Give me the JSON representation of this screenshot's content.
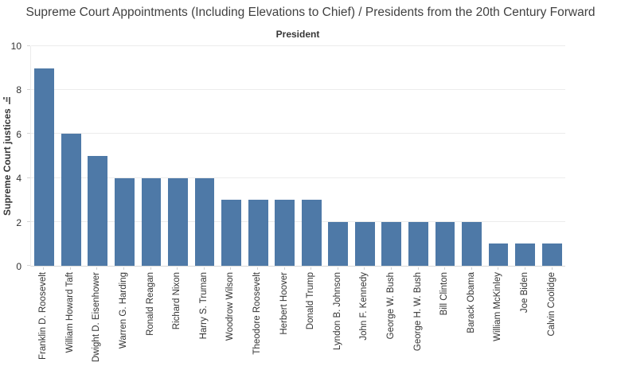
{
  "title": "Supreme Court Appointments (Including Elevations to Chief) / Presidents from the 20th Century Forward",
  "chart_data": {
    "type": "bar",
    "title": "Supreme Court Appointments (Including Elevations to Chief) / Presidents from the 20th Century Forward",
    "x_axis_title": "President",
    "y_axis_label": "Supreme Court justices",
    "categories": [
      "Franklin D. Roosevelt",
      "William Howard Taft",
      "Dwight D. Eisenhower",
      "Warren G. Harding",
      "Ronald Reagan",
      "Richard Nixon",
      "Harry S. Truman",
      "Woodrow Wilson",
      "Theodore Roosevelt",
      "Herbert Hoover",
      "Donald Trump",
      "Lyndon B. Johnson",
      "John F. Kennedy",
      "George W. Bush",
      "George H. W. Bush",
      "Bill Clinton",
      "Barack Obama",
      "William McKinley",
      "Joe Biden",
      "Calvin Coolidge"
    ],
    "values": [
      9,
      6,
      5,
      4,
      4,
      4,
      4,
      3,
      3,
      3,
      3,
      2,
      2,
      2,
      2,
      2,
      2,
      1,
      1,
      1
    ],
    "y_ticks": [
      0,
      2,
      4,
      6,
      8,
      10
    ],
    "ylim": [
      0,
      10
    ],
    "bar_color": "#4e79a7",
    "grid": "horizontal",
    "legend": "none",
    "sort_order": "descending",
    "icons": {
      "sort_icon": "sort-descending-icon"
    }
  }
}
